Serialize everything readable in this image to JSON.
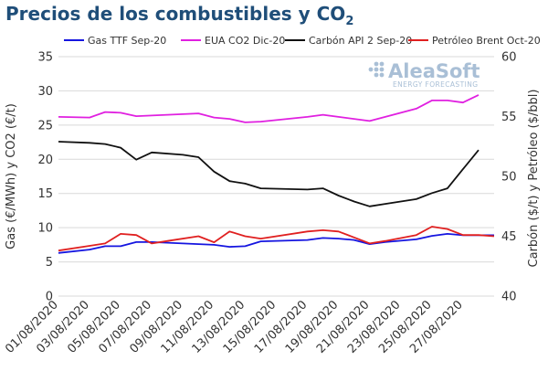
{
  "title": {
    "main": "Precios de los combustibles y CO",
    "subscript": "2"
  },
  "watermark": {
    "brand": "AleaSoft",
    "tagline": "ENERGY FORECASTING"
  },
  "chart_data": {
    "type": "line",
    "title": "Precios de los combustibles y CO2",
    "x_tick_labels": [
      "01/08/2020",
      "03/08/2020",
      "05/08/2020",
      "07/08/2020",
      "09/08/2020",
      "11/08/2020",
      "13/08/2020",
      "15/08/2020",
      "17/08/2020",
      "19/08/2020",
      "21/08/2020",
      "23/08/2020",
      "25/08/2020",
      "27/08/2020"
    ],
    "x_range": [
      "01/08/2020",
      "29/08/2020"
    ],
    "y_left": {
      "label": "Gas (€/MWh) y CO2 (€/t)",
      "range": [
        0,
        35
      ],
      "ticks": [
        0,
        5,
        10,
        15,
        20,
        25,
        30,
        35
      ]
    },
    "y_right": {
      "label": "Carbón ($/t) y Petróleo ($/bbl)",
      "range": [
        40,
        60
      ],
      "ticks": [
        40,
        45,
        50,
        55,
        60
      ]
    },
    "grid": "horizontal",
    "legend_position": "top",
    "series": [
      {
        "name": "Gas TTF Sep-20",
        "axis": "left",
        "color": "#1515e0",
        "points": [
          [
            "01/08/2020",
            6.3
          ],
          [
            "03/08/2020",
            6.8
          ],
          [
            "04/08/2020",
            7.3
          ],
          [
            "05/08/2020",
            7.3
          ],
          [
            "06/08/2020",
            7.9
          ],
          [
            "07/08/2020",
            7.9
          ],
          [
            "08/08/2020",
            7.8
          ],
          [
            "10/08/2020",
            7.6
          ],
          [
            "11/08/2020",
            7.5
          ],
          [
            "12/08/2020",
            7.2
          ],
          [
            "13/08/2020",
            7.3
          ],
          [
            "14/08/2020",
            8.0
          ],
          [
            "17/08/2020",
            8.2
          ],
          [
            "18/08/2020",
            8.5
          ],
          [
            "19/08/2020",
            8.4
          ],
          [
            "20/08/2020",
            8.2
          ],
          [
            "21/08/2020",
            7.6
          ],
          [
            "22/08/2020",
            7.9
          ],
          [
            "24/08/2020",
            8.3
          ],
          [
            "25/08/2020",
            8.8
          ],
          [
            "26/08/2020",
            9.1
          ],
          [
            "27/08/2020",
            8.9
          ],
          [
            "28/08/2020",
            8.9
          ],
          [
            "29/08/2020",
            8.9
          ]
        ]
      },
      {
        "name": "EUA CO2 Dic-20",
        "axis": "left",
        "color": "#e020e0",
        "points": [
          [
            "01/08/2020",
            26.2
          ],
          [
            "03/08/2020",
            26.1
          ],
          [
            "04/08/2020",
            26.9
          ],
          [
            "05/08/2020",
            26.8
          ],
          [
            "06/08/2020",
            26.3
          ],
          [
            "07/08/2020",
            26.4
          ],
          [
            "10/08/2020",
            26.7
          ],
          [
            "11/08/2020",
            26.1
          ],
          [
            "12/08/2020",
            25.9
          ],
          [
            "13/08/2020",
            25.4
          ],
          [
            "14/08/2020",
            25.5
          ],
          [
            "17/08/2020",
            26.2
          ],
          [
            "18/08/2020",
            26.5
          ],
          [
            "19/08/2020",
            26.2
          ],
          [
            "21/08/2020",
            25.6
          ],
          [
            "22/08/2020",
            26.2
          ],
          [
            "24/08/2020",
            27.4
          ],
          [
            "25/08/2020",
            28.6
          ],
          [
            "26/08/2020",
            28.6
          ],
          [
            "27/08/2020",
            28.3
          ],
          [
            "28/08/2020",
            29.4
          ]
        ]
      },
      {
        "name": "Carbón API 2 Sep-20",
        "axis": "right",
        "color": "#111111",
        "points": [
          [
            "01/08/2020",
            52.9
          ],
          [
            "03/08/2020",
            52.8
          ],
          [
            "04/08/2020",
            52.7
          ],
          [
            "05/08/2020",
            52.4
          ],
          [
            "06/08/2020",
            51.4
          ],
          [
            "07/08/2020",
            52.0
          ],
          [
            "09/08/2020",
            51.8
          ],
          [
            "10/08/2020",
            51.6
          ],
          [
            "11/08/2020",
            50.4
          ],
          [
            "12/08/2020",
            49.6
          ],
          [
            "13/08/2020",
            49.4
          ],
          [
            "14/08/2020",
            49.0
          ],
          [
            "17/08/2020",
            48.9
          ],
          [
            "18/08/2020",
            49.0
          ],
          [
            "19/08/2020",
            48.4
          ],
          [
            "20/08/2020",
            47.9
          ],
          [
            "21/08/2020",
            47.5
          ],
          [
            "22/08/2020",
            47.7
          ],
          [
            "24/08/2020",
            48.1
          ],
          [
            "25/08/2020",
            48.6
          ],
          [
            "26/08/2020",
            49.0
          ],
          [
            "27/08/2020",
            50.6
          ],
          [
            "28/08/2020",
            52.2
          ]
        ]
      },
      {
        "name": "Petróleo Brent Oct-20",
        "axis": "right",
        "color": "#e02020",
        "points": [
          [
            "01/08/2020",
            43.8
          ],
          [
            "03/08/2020",
            44.2
          ],
          [
            "04/08/2020",
            44.4
          ],
          [
            "05/08/2020",
            45.2
          ],
          [
            "06/08/2020",
            45.1
          ],
          [
            "07/08/2020",
            44.4
          ],
          [
            "08/08/2020",
            44.6
          ],
          [
            "10/08/2020",
            45.0
          ],
          [
            "11/08/2020",
            44.5
          ],
          [
            "12/08/2020",
            45.4
          ],
          [
            "13/08/2020",
            45.0
          ],
          [
            "14/08/2020",
            44.8
          ],
          [
            "17/08/2020",
            45.4
          ],
          [
            "18/08/2020",
            45.5
          ],
          [
            "19/08/2020",
            45.4
          ],
          [
            "20/08/2020",
            44.9
          ],
          [
            "21/08/2020",
            44.4
          ],
          [
            "22/08/2020",
            44.6
          ],
          [
            "24/08/2020",
            45.1
          ],
          [
            "25/08/2020",
            45.8
          ],
          [
            "26/08/2020",
            45.6
          ],
          [
            "27/08/2020",
            45.1
          ],
          [
            "28/08/2020",
            45.1
          ],
          [
            "29/08/2020",
            45.0
          ]
        ]
      }
    ]
  }
}
